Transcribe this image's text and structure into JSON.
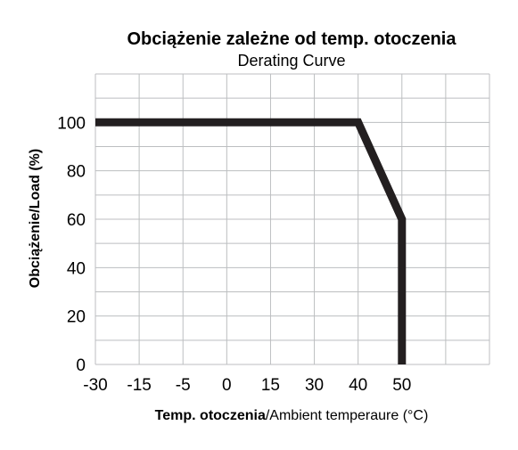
{
  "chart_data": {
    "type": "line",
    "title": "Obciążenie zależne od temp. otoczenia",
    "subtitle": "Derating Curve",
    "xlabel_bold": "Temp. otoczenia",
    "xlabel_rest": "/Ambient temperaure (°C)",
    "ylabel": "Obciążenie/Load (%)",
    "x_ticks": [
      "-30",
      "-15",
      "-5",
      "0",
      "15",
      "30",
      "40",
      "50"
    ],
    "y_ticks": [
      "100",
      "80",
      "60",
      "40",
      "20",
      "0"
    ],
    "x_tick_positions": [
      -30,
      -15,
      -5,
      0,
      15,
      30,
      40,
      50
    ],
    "y_tick_values": [
      100,
      80,
      60,
      40,
      20,
      0
    ],
    "ylim": [
      0,
      120
    ],
    "grid": true,
    "series": [
      {
        "x": [
          -30,
          40,
          50,
          50
        ],
        "y": [
          100,
          100,
          60,
          0
        ]
      }
    ],
    "line_color": "#231f20",
    "grid_color": "#bcbec0"
  }
}
